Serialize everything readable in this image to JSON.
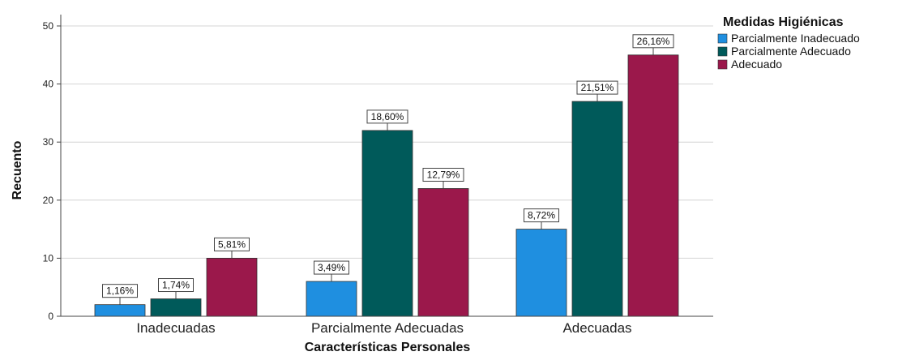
{
  "chart_data": {
    "type": "bar",
    "xlabel": "Características Personales",
    "ylabel": "Recuento",
    "ylim": [
      0,
      50
    ],
    "yticks": [
      0,
      10,
      20,
      30,
      40,
      50
    ],
    "grid": true,
    "legend_title": "Medidas Higiénicas",
    "legend_position": "top-right",
    "categories": [
      "Inadecuadas",
      "Parcialmente Adecuadas",
      "Adecuadas"
    ],
    "series": [
      {
        "name": "Parcialmente Inadecuado",
        "color": "#1f8fe0",
        "values": [
          2,
          6,
          15
        ],
        "labels": [
          "1,16%",
          "3,49%",
          "8,72%"
        ]
      },
      {
        "name": "Parcialmente Adecuado",
        "color": "#005a5a",
        "values": [
          3,
          32,
          37
        ],
        "labels": [
          "1,74%",
          "18,60%",
          "21,51%"
        ]
      },
      {
        "name": "Adecuado",
        "color": "#9b184b",
        "values": [
          10,
          22,
          45
        ],
        "labels": [
          "5,81%",
          "12,79%",
          "26,16%"
        ]
      }
    ]
  }
}
